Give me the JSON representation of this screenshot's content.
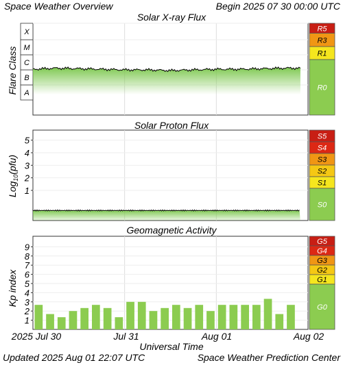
{
  "header": {
    "title": "Space Weather Overview",
    "begin": "Begin 2025 07 30 00:00 UTC"
  },
  "footer": {
    "updated": "Updated 2025 Aug 01 22:07 UTC",
    "center": "Space Weather Prediction Center"
  },
  "colors": {
    "scale_g0": "#8ccc50",
    "level1": "#f5e61e",
    "level2": "#f5c814",
    "level3": "#f09614",
    "level4": "#dc2814",
    "level5": "#c81e14",
    "kp_bar": "#8ccc50",
    "trace": "#000000",
    "fill_top": "#7ec850"
  },
  "chart_data": [
    {
      "type": "area",
      "title": "Solar X-ray Flux",
      "ylabel": "Flare Class",
      "ylog": true,
      "ylim": [
        1e-09,
        0.001
      ],
      "class_labels": [
        "A",
        "B",
        "C",
        "M",
        "X"
      ],
      "scale_labels": [
        "R5",
        "R3",
        "R1",
        "R0"
      ],
      "x_start": "2025-07-30T00:00Z",
      "x_end": "2025-08-02T00:00Z",
      "x_tick_labels": [
        "2025 Jul 30",
        "Jul 31",
        "Aug 01",
        "Aug 02"
      ],
      "series": [
        {
          "x": [
            "2025-07-30T00:00Z",
            "2025-07-30T06:00Z",
            "2025-07-30T12:00Z",
            "2025-07-30T18:00Z",
            "2025-07-31T00:00Z",
            "2025-07-31T06:00Z",
            "2025-07-31T12:00Z",
            "2025-07-31T18:00Z",
            "2025-08-01T00:00Z",
            "2025-08-01T06:00Z",
            "2025-08-01T12:00Z",
            "2025-08-01T18:00Z",
            "2025-08-01T22:00Z"
          ],
          "values": [
            1.1e-06,
            1.3e-06,
            1.2e-06,
            1.1e-06,
            1e-06,
            1e-06,
            9e-07,
            1e-06,
            1.1e-06,
            1.1e-06,
            1.2e-06,
            1.3e-06,
            1.3e-06
          ]
        }
      ]
    },
    {
      "type": "area",
      "title": "Solar Proton Flux",
      "ylabel": "Log10(pfu)",
      "ylim": [
        -1.4,
        5.8
      ],
      "y_tick_labels": [
        "1",
        "2",
        "3",
        "4",
        "5"
      ],
      "scale_labels": [
        "S5",
        "S4",
        "S3",
        "S2",
        "S1",
        "S0"
      ],
      "x_start": "2025-07-30T00:00Z",
      "x_end": "2025-08-02T00:00Z",
      "series": [
        {
          "x": [
            "2025-07-30T00:00Z",
            "2025-07-30T12:00Z",
            "2025-07-31T00:00Z",
            "2025-07-31T12:00Z",
            "2025-08-01T00:00Z",
            "2025-08-01T12:00Z",
            "2025-08-01T22:00Z"
          ],
          "values": [
            -0.6,
            -0.6,
            -0.6,
            -0.6,
            -0.6,
            -0.6,
            -0.6
          ]
        }
      ]
    },
    {
      "type": "bar",
      "title": "Geomagnetic Activity",
      "ylabel": "Kp index",
      "xlabel": "Universal Time",
      "ylim": [
        0,
        10
      ],
      "y_tick_labels": [
        "1",
        "2",
        "3",
        "4",
        "5",
        "6",
        "7",
        "8",
        "9"
      ],
      "scale_labels": [
        "G5",
        "G4",
        "G3",
        "G2",
        "G1",
        "G0"
      ],
      "x_start": "2025-07-30T00:00Z",
      "x_end": "2025-08-02T00:00Z",
      "x_tick_labels": [
        "2025 Jul 30",
        "Jul 31",
        "Aug 01",
        "Aug 02"
      ],
      "categories": [
        "Jul 30 00",
        "Jul 30 03",
        "Jul 30 06",
        "Jul 30 09",
        "Jul 30 12",
        "Jul 30 15",
        "Jul 30 18",
        "Jul 30 21",
        "Jul 31 00",
        "Jul 31 03",
        "Jul 31 06",
        "Jul 31 09",
        "Jul 31 12",
        "Jul 31 15",
        "Jul 31 18",
        "Jul 31 21",
        "Aug 01 00",
        "Aug 01 03",
        "Aug 01 06",
        "Aug 01 09",
        "Aug 01 12",
        "Aug 01 15",
        "Aug 01 18",
        "Aug 01 21"
      ],
      "values": [
        2.67,
        1.67,
        1.33,
        2.0,
        2.33,
        2.67,
        2.33,
        1.33,
        3.0,
        3.0,
        2.0,
        2.33,
        2.67,
        2.33,
        2.67,
        2.0,
        2.67,
        2.67,
        2.67,
        2.67,
        3.33,
        1.67,
        2.67,
        null
      ]
    }
  ]
}
